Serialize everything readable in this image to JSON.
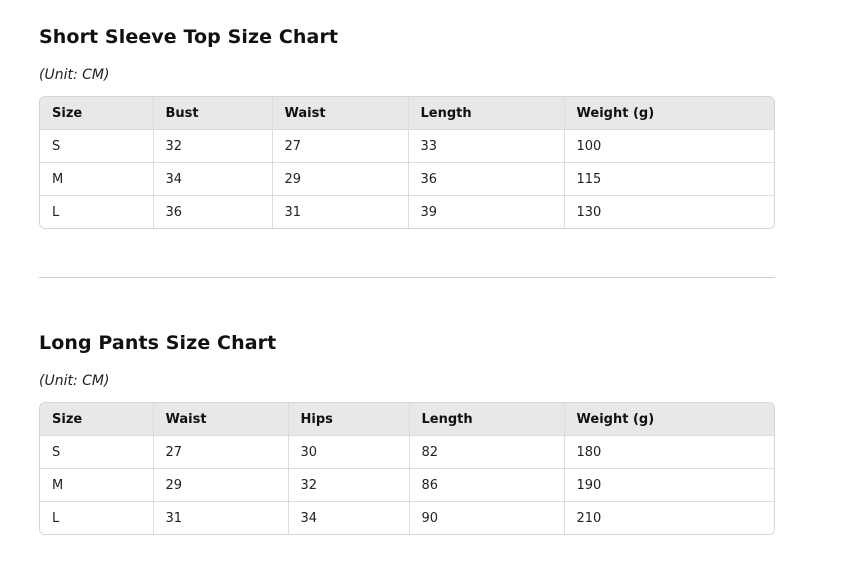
{
  "top_chart": {
    "title": "Short Sleeve Top Size Chart",
    "unit": "(Unit: CM)",
    "headers": [
      "Size",
      "Bust",
      "Waist",
      "Length",
      "Weight (g)"
    ],
    "rows": [
      [
        "S",
        "32",
        "27",
        "33",
        "100"
      ],
      [
        "M",
        "34",
        "29",
        "36",
        "115"
      ],
      [
        "L",
        "36",
        "31",
        "39",
        "130"
      ]
    ]
  },
  "pants_chart": {
    "title": "Long Pants Size Chart",
    "unit": "(Unit: CM)",
    "headers": [
      "Size",
      "Waist",
      "Hips",
      "Length",
      "Weight (g)"
    ],
    "rows": [
      [
        "S",
        "27",
        "30",
        "82",
        "180"
      ],
      [
        "M",
        "29",
        "32",
        "86",
        "190"
      ],
      [
        "L",
        "31",
        "34",
        "90",
        "210"
      ]
    ]
  }
}
